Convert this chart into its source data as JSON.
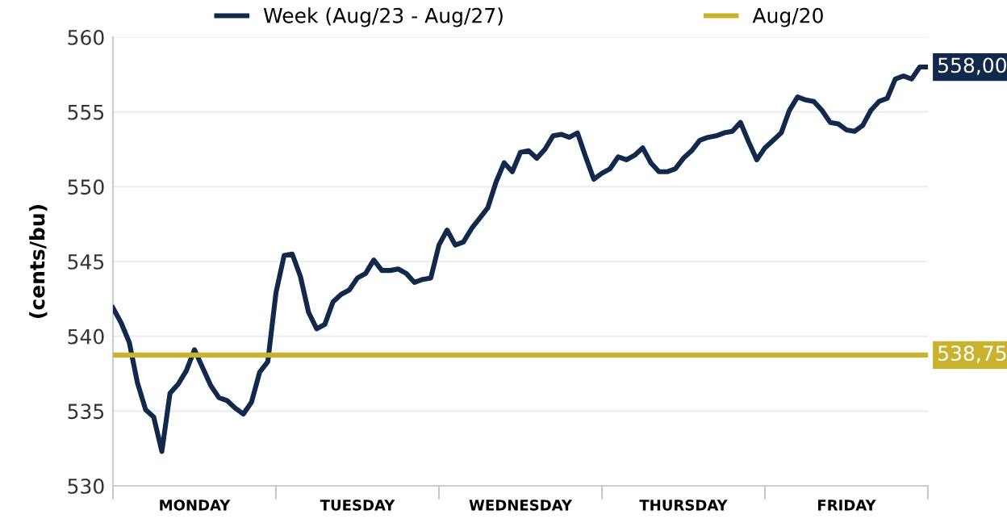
{
  "chart_data": {
    "type": "line",
    "ylabel": "(cents/bu)",
    "legend": "top",
    "grid": "y",
    "line_style": "solid",
    "marker": "none",
    "ylim": [
      530,
      560
    ],
    "yticks": [
      530,
      535,
      540,
      545,
      550,
      555,
      560
    ],
    "categories": [
      null,
      null,
      null,
      null,
      null,
      null,
      null,
      null,
      null,
      null,
      "MONDAY",
      null,
      null,
      null,
      null,
      null,
      null,
      null,
      null,
      null,
      null,
      null,
      null,
      null,
      null,
      null,
      null,
      null,
      null,
      null,
      "TUESDAY",
      null,
      null,
      null,
      null,
      null,
      null,
      null,
      null,
      null,
      null,
      null,
      null,
      null,
      null,
      null,
      null,
      null,
      null,
      null,
      "WEDNESDAY",
      null,
      null,
      null,
      null,
      null,
      null,
      null,
      null,
      null,
      null,
      null,
      null,
      null,
      null,
      null,
      null,
      null,
      null,
      null,
      "THURSDAY",
      null,
      null,
      null,
      null,
      null,
      null,
      null,
      null,
      null,
      null,
      null,
      null,
      null,
      null,
      null,
      null,
      null,
      null,
      null,
      "FRIDAY",
      null,
      null,
      null,
      null,
      null,
      null,
      null,
      null,
      null,
      null
    ],
    "series": [
      {
        "name": "Week (Aug/23 - Aug/27)",
        "color": "#13294b",
        "values": [
          541.9,
          540.9,
          539.6,
          536.9,
          535.1,
          534.6,
          532.3,
          536.2,
          536.8,
          537.7,
          539.1,
          537.9,
          536.7,
          535.9,
          535.7,
          535.2,
          534.8,
          535.6,
          537.6,
          538.3,
          542.9,
          545.4,
          545.5,
          544.0,
          541.6,
          540.5,
          540.8,
          542.3,
          542.8,
          543.1,
          543.9,
          544.2,
          545.1,
          544.4,
          544.4,
          544.5,
          544.2,
          543.6,
          543.8,
          543.9,
          546.1,
          547.1,
          546.1,
          546.3,
          547.2,
          547.9,
          548.6,
          550.3,
          551.6,
          551.0,
          552.3,
          552.4,
          551.9,
          552.5,
          553.4,
          553.5,
          553.3,
          553.6,
          552.0,
          550.5,
          550.9,
          551.2,
          552.0,
          551.8,
          552.1,
          552.6,
          551.6,
          551.0,
          551.0,
          551.2,
          551.9,
          552.4,
          553.1,
          553.3,
          553.4,
          553.6,
          553.7,
          554.3,
          553.0,
          551.8,
          552.6,
          553.1,
          553.6,
          555.1,
          556.0,
          555.8,
          555.7,
          555.1,
          554.3,
          554.2,
          553.8,
          553.7,
          554.1,
          555.1,
          555.7,
          555.9,
          557.2,
          557.4,
          557.2,
          558.0,
          558.0
        ],
        "value_labels": [
          null,
          null,
          null,
          null,
          null,
          null,
          null,
          null,
          null,
          null,
          null,
          null,
          null,
          null,
          null,
          null,
          null,
          null,
          null,
          null,
          null,
          null,
          null,
          null,
          null,
          null,
          null,
          null,
          null,
          null,
          null,
          null,
          null,
          null,
          null,
          null,
          null,
          null,
          null,
          null,
          null,
          null,
          null,
          null,
          null,
          null,
          null,
          null,
          null,
          null,
          null,
          null,
          null,
          null,
          null,
          null,
          null,
          null,
          null,
          null,
          null,
          null,
          null,
          null,
          null,
          null,
          null,
          null,
          null,
          null,
          null,
          null,
          null,
          null,
          null,
          null,
          null,
          null,
          null,
          null,
          null,
          null,
          null,
          null,
          null,
          null,
          null,
          null,
          null,
          null,
          null,
          null,
          null,
          null,
          null,
          null,
          null,
          null,
          null,
          null,
          "558,00"
        ]
      },
      {
        "name": "Aug/20",
        "color": "#c8b22e",
        "values": [
          538.75,
          538.75,
          538.75,
          538.75,
          538.75,
          538.75,
          538.75,
          538.75,
          538.75,
          538.75,
          538.75,
          538.75,
          538.75,
          538.75,
          538.75,
          538.75,
          538.75,
          538.75,
          538.75,
          538.75,
          538.75,
          538.75,
          538.75,
          538.75,
          538.75,
          538.75,
          538.75,
          538.75,
          538.75,
          538.75,
          538.75,
          538.75,
          538.75,
          538.75,
          538.75,
          538.75,
          538.75,
          538.75,
          538.75,
          538.75,
          538.75,
          538.75,
          538.75,
          538.75,
          538.75,
          538.75,
          538.75,
          538.75,
          538.75,
          538.75,
          538.75,
          538.75,
          538.75,
          538.75,
          538.75,
          538.75,
          538.75,
          538.75,
          538.75,
          538.75,
          538.75,
          538.75,
          538.75,
          538.75,
          538.75,
          538.75,
          538.75,
          538.75,
          538.75,
          538.75,
          538.75,
          538.75,
          538.75,
          538.75,
          538.75,
          538.75,
          538.75,
          538.75,
          538.75,
          538.75,
          538.75,
          538.75,
          538.75,
          538.75,
          538.75,
          538.75,
          538.75,
          538.75,
          538.75,
          538.75,
          538.75,
          538.75,
          538.75,
          538.75,
          538.75,
          538.75,
          538.75,
          538.75,
          538.75,
          538.75,
          538.75
        ],
        "value_labels": [
          null,
          null,
          null,
          null,
          null,
          null,
          null,
          null,
          null,
          null,
          null,
          null,
          null,
          null,
          null,
          null,
          null,
          null,
          null,
          null,
          null,
          null,
          null,
          null,
          null,
          null,
          null,
          null,
          null,
          null,
          null,
          null,
          null,
          null,
          null,
          null,
          null,
          null,
          null,
          null,
          null,
          null,
          null,
          null,
          null,
          null,
          null,
          null,
          null,
          null,
          null,
          null,
          null,
          null,
          null,
          null,
          null,
          null,
          null,
          null,
          null,
          null,
          null,
          null,
          null,
          null,
          null,
          null,
          null,
          null,
          null,
          null,
          null,
          null,
          null,
          null,
          null,
          null,
          null,
          null,
          null,
          null,
          null,
          null,
          null,
          null,
          null,
          null,
          null,
          null,
          null,
          null,
          null,
          null,
          null,
          null,
          null,
          null,
          null,
          null,
          "538,75"
        ]
      }
    ]
  }
}
